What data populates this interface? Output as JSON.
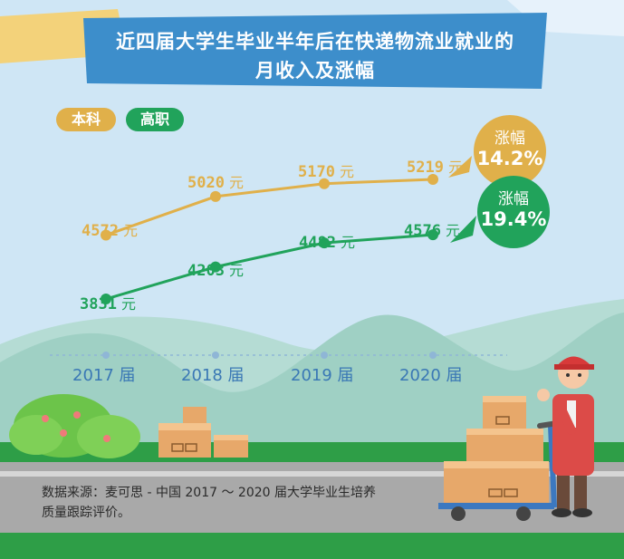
{
  "title": {
    "line1": "近四届大学生毕业半年后在快递物流业就业的",
    "line2": "月收入及涨幅"
  },
  "legend": {
    "benke": "本科",
    "gaozhi": "高职"
  },
  "colors": {
    "benke": "#e0b04a",
    "gaozhi": "#21a35b",
    "axis_label": "#3a78b5",
    "title_bg": "#3d8ecb"
  },
  "chart_data": {
    "type": "line",
    "categories": [
      "2017 届",
      "2018 届",
      "2019 届",
      "2020 届"
    ],
    "series": [
      {
        "name": "本科",
        "values": [
          4572,
          5020,
          5170,
          5219
        ]
      },
      {
        "name": "高职",
        "values": [
          3831,
          4203,
          4482,
          4576
        ]
      }
    ],
    "value_labels": {
      "benke": [
        "4572",
        "5020",
        "5170",
        "5219"
      ],
      "gaozhi": [
        "3831",
        "4203",
        "4482",
        "4576"
      ]
    },
    "unit": "元",
    "growth": {
      "benke": {
        "label": "涨幅",
        "value": "14.2%"
      },
      "gaozhi": {
        "label": "涨幅",
        "value": "19.4%"
      }
    }
  },
  "footnote": {
    "line1": "数据来源：麦可思 - 中国 2017 ～ 2020 届大学毕业生培养",
    "line2": "质量跟踪评价。"
  }
}
